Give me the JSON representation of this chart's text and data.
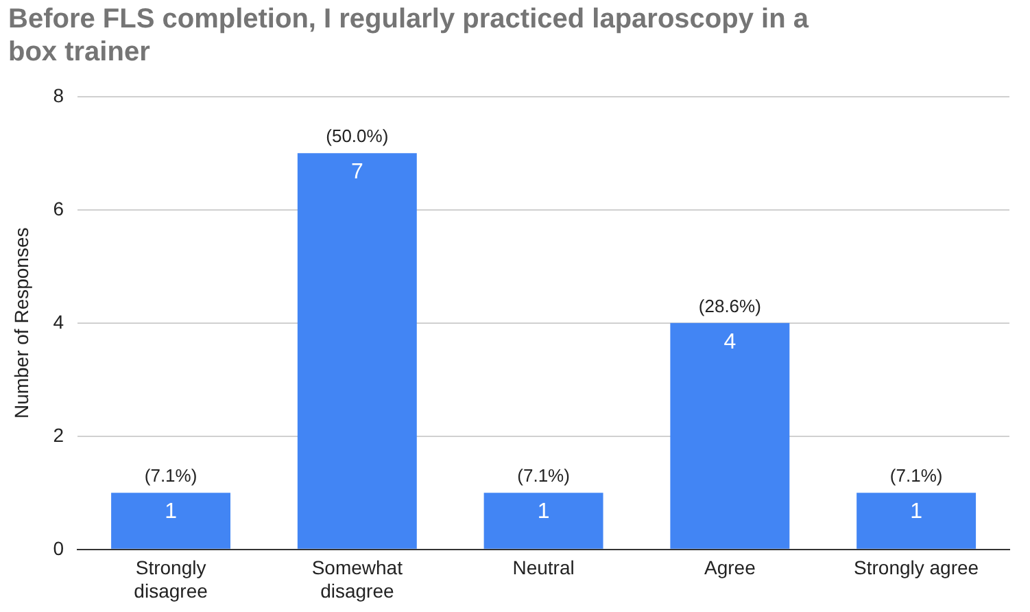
{
  "chart_data": {
    "type": "bar",
    "title": "Before FLS completion, I regularly practiced laparoscopy in a box trainer",
    "ylabel": "Number of Responses",
    "categories": [
      "Strongly disagree",
      "Somewhat disagree",
      "Neutral",
      "Agree",
      "Strongly agree"
    ],
    "values": [
      1,
      7,
      1,
      4,
      1
    ],
    "color": "#4285f4",
    "ylim": [
      0,
      8
    ],
    "yticks": [
      0,
      2,
      4,
      6,
      8
    ],
    "grid": "y",
    "legend": false,
    "data_labels": true,
    "annotations": [
      {
        "text": "(7.1%)",
        "x": "Strongly disagree",
        "y": 1
      },
      {
        "text": "(50.0%)",
        "x": "Somewhat disagree",
        "y": 7
      },
      {
        "text": "(7.1%)",
        "x": "Neutral",
        "y": 1
      },
      {
        "text": "(28.6%)",
        "x": "Agree",
        "y": 4
      },
      {
        "text": "(7.1%)",
        "x": "Strongly agree",
        "y": 1
      }
    ]
  }
}
